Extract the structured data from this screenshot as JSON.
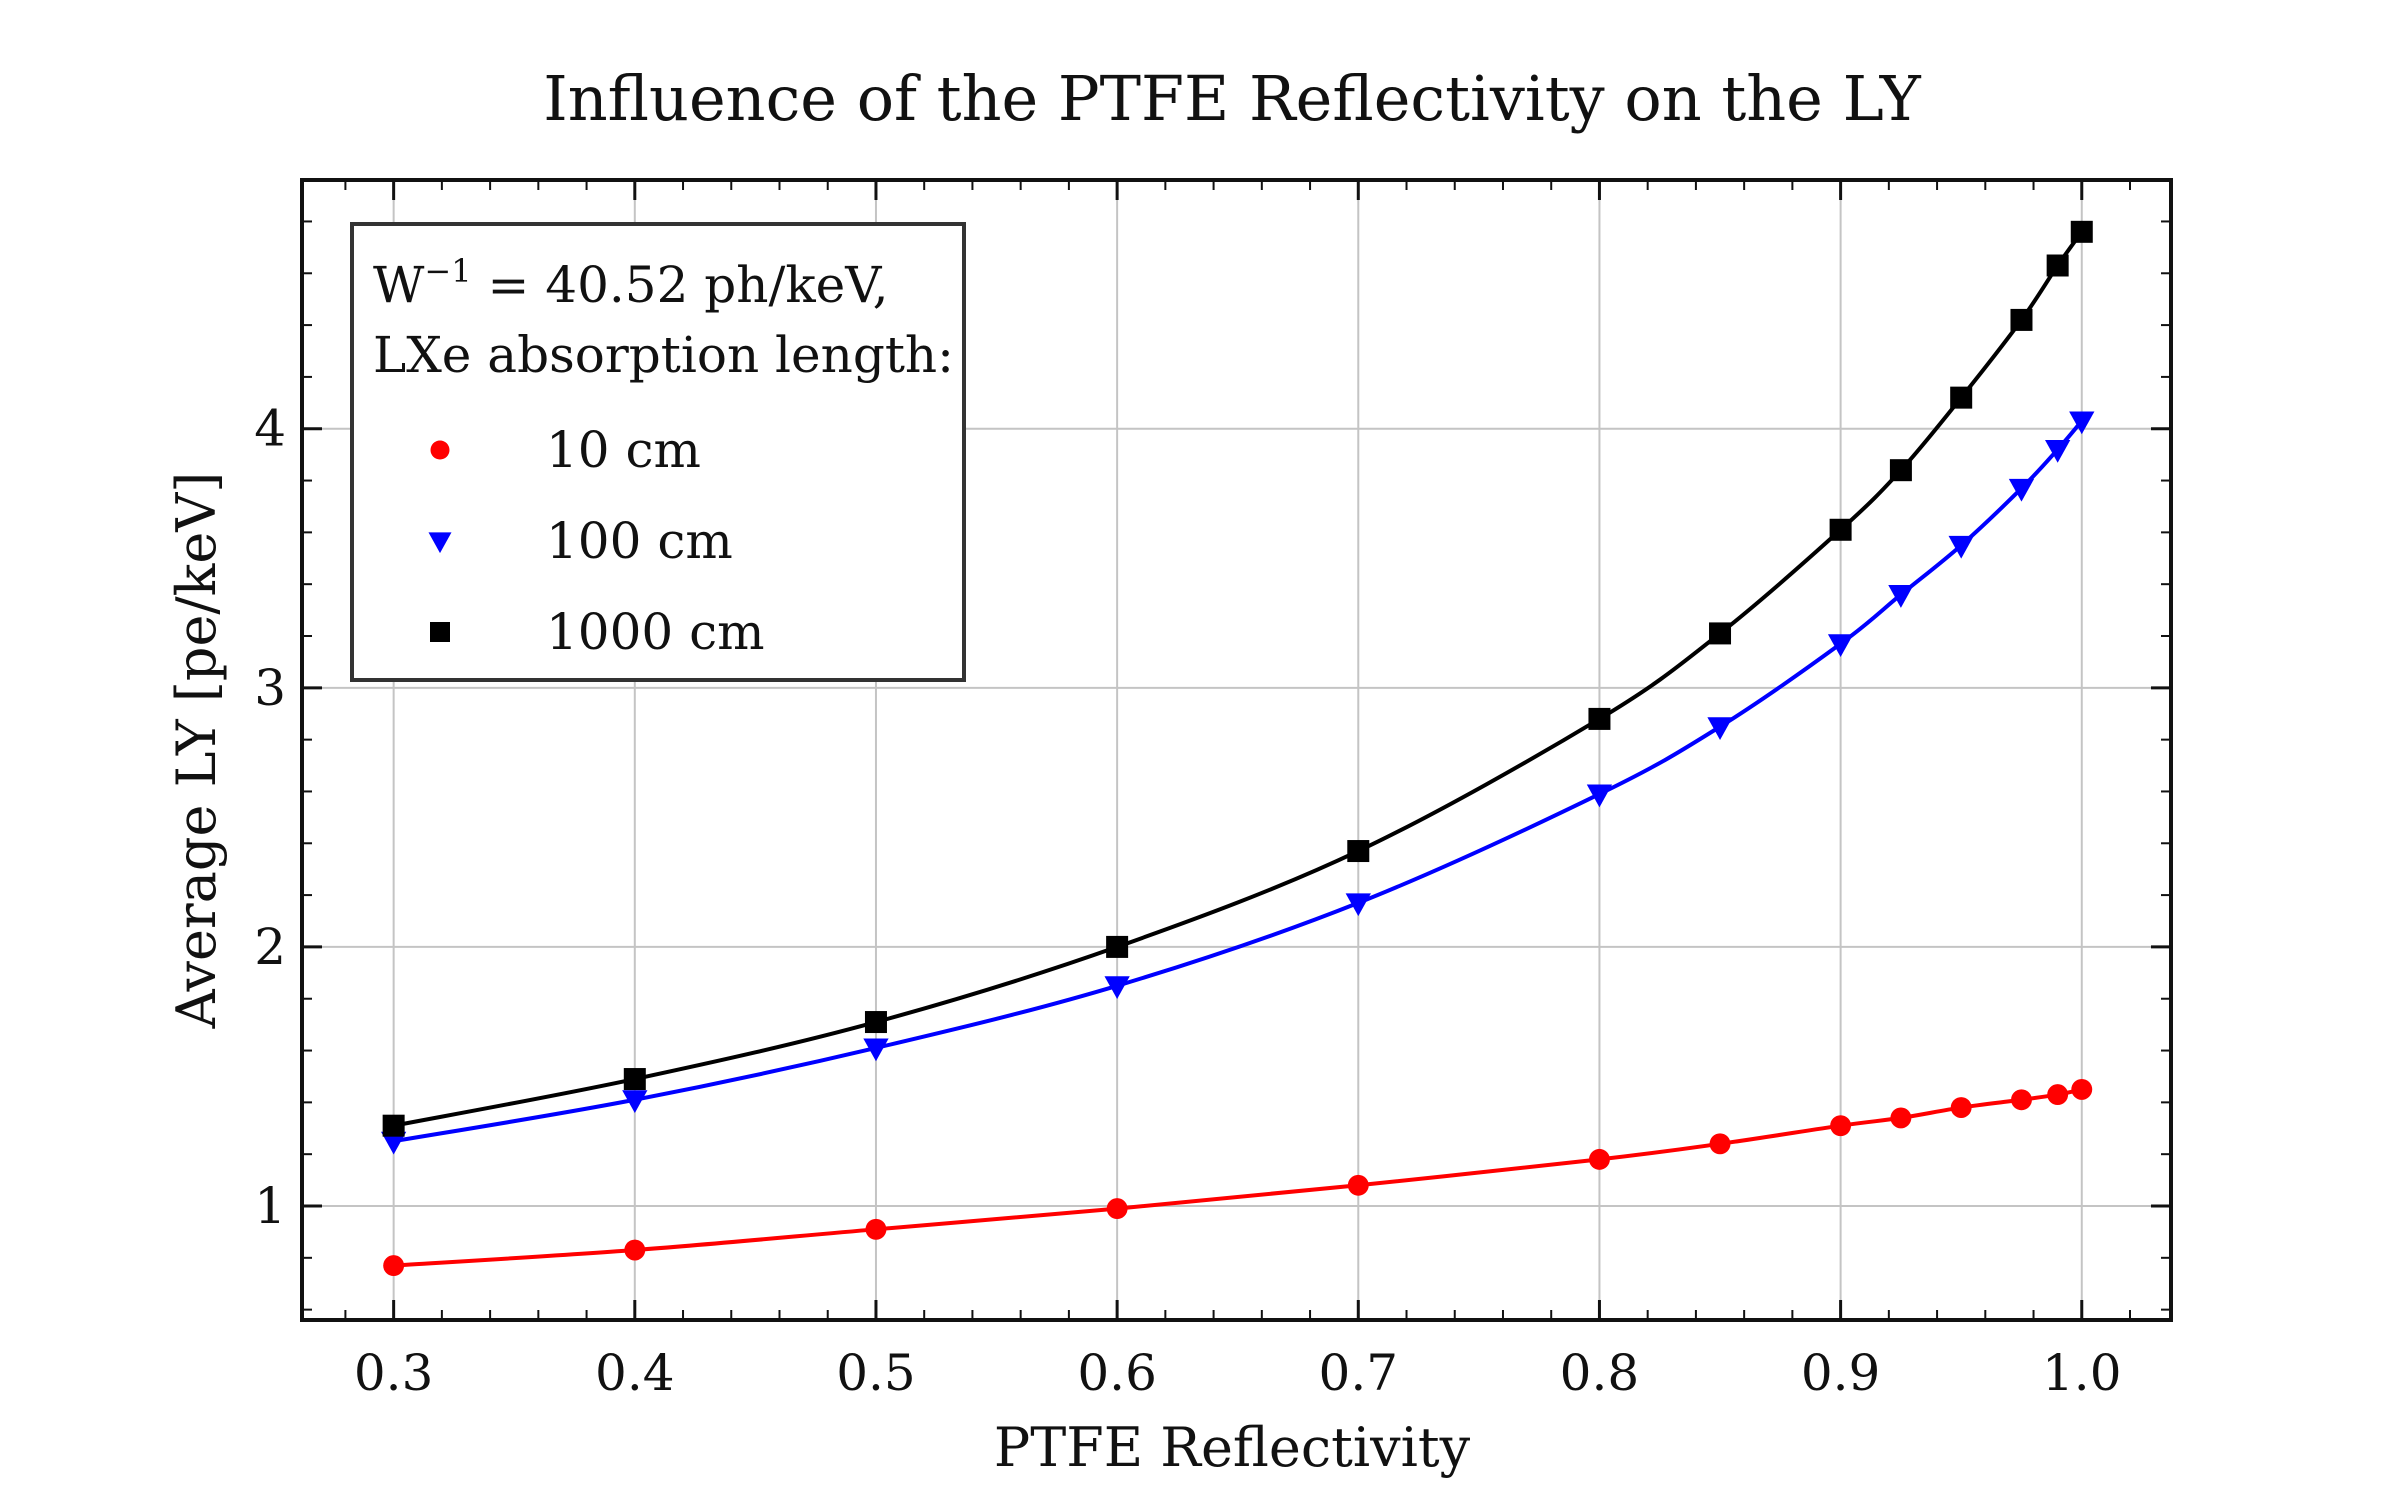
{
  "chart_data": {
    "type": "line",
    "title": "Influence of the PTFE Reflectivity on the LY",
    "xlabel": "PTFE Reflectivity",
    "ylabel": "Average LY [pe/keV]",
    "xlim": [
      0.262,
      1.037
    ],
    "ylim": [
      0.56,
      4.96
    ],
    "xticks": [
      0.3,
      0.4,
      0.5,
      0.6,
      0.7,
      0.8,
      0.9,
      1.0
    ],
    "xtick_labels": [
      "0.3",
      "0.4",
      "0.5",
      "0.6",
      "0.7",
      "0.8",
      "0.9",
      "1.0"
    ],
    "yticks": [
      1,
      2,
      3,
      4
    ],
    "ytick_labels": [
      "1",
      "2",
      "3",
      "4"
    ],
    "grid": true,
    "legend": {
      "placement": "top-left",
      "title_line1_base": "W",
      "title_line1_sup": "−1",
      "title_line1_rest": " = 40.52 ph/keV,",
      "title_line2": "LXe absorption length:"
    },
    "x": [
      0.3,
      0.4,
      0.5,
      0.6,
      0.7,
      0.8,
      0.85,
      0.9,
      0.925,
      0.95,
      0.975,
      0.99,
      1.0
    ],
    "series": [
      {
        "name": "10 cm",
        "color": "#ff0000",
        "marker": "circle",
        "values": [
          0.77,
          0.83,
          0.91,
          0.99,
          1.08,
          1.18,
          1.24,
          1.31,
          1.34,
          1.38,
          1.41,
          1.43,
          1.45
        ]
      },
      {
        "name": "100 cm",
        "color": "#0000ff",
        "marker": "triangle-down",
        "values": [
          1.25,
          1.41,
          1.61,
          1.85,
          2.17,
          2.59,
          2.85,
          3.17,
          3.36,
          3.55,
          3.77,
          3.92,
          4.03
        ]
      },
      {
        "name": "1000 cm",
        "color": "#000000",
        "marker": "square",
        "values": [
          1.31,
          1.49,
          1.71,
          2.0,
          2.37,
          2.88,
          3.21,
          3.61,
          3.84,
          4.12,
          4.42,
          4.63,
          4.76
        ]
      }
    ]
  }
}
